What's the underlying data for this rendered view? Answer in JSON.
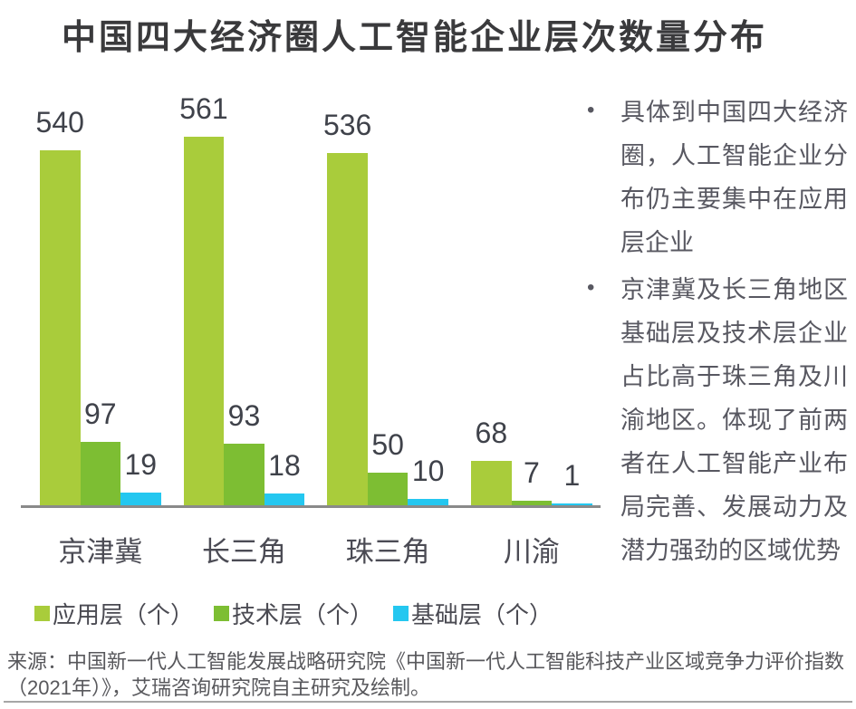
{
  "title": "中国四大经济圈人工智能企业层次数量分布",
  "chart_data": {
    "type": "bar",
    "categories": [
      "京津冀",
      "长三角",
      "珠三角",
      "川渝"
    ],
    "series": [
      {
        "name": "应用层（个）",
        "color": "#A9CC3B",
        "values": [
          540,
          561,
          536,
          68
        ]
      },
      {
        "name": "技术层（个）",
        "color": "#7DBE33",
        "values": [
          97,
          93,
          50,
          7
        ]
      },
      {
        "name": "基础层（个）",
        "color": "#24C7F0",
        "values": [
          19,
          18,
          10,
          1
        ]
      }
    ],
    "title": "中国四大经济圈人工智能企业层次数量分布",
    "xlabel": "",
    "ylabel": "",
    "ylim": [
      0,
      635
    ],
    "grid": false,
    "value_labels": true,
    "legend_position": "bottom",
    "axis_color": "#8A8A8A"
  },
  "notes": {
    "bullet_char": "•",
    "items": [
      "具体到中国四大经济圈，人工智能企业分布仍主要集中在应用层企业",
      "京津冀及长三角地区基础层及技术层企业占比高于珠三角及川渝地区。体现了前两者在人工智能产业布局完善、发展动力及潜力强劲的区域优势"
    ]
  },
  "source": "来源：中国新一代人工智能发展战略研究院《中国新一代人工智能科技产业区域竞争力评价指数（2021年）》，艾瑞咨询研究院自主研究及绘制。"
}
